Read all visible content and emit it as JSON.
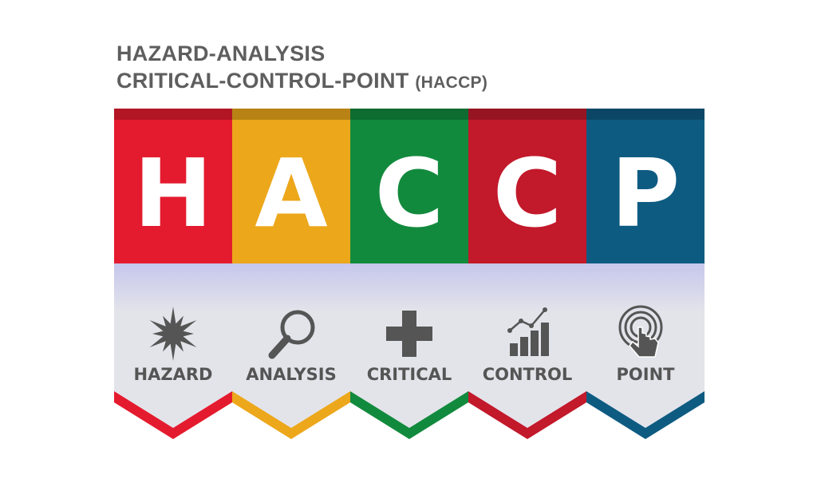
{
  "title": {
    "line1": "HAZARD-ANALYSIS",
    "line2": "CRITICAL-CONTROL-POINT",
    "abbreviation": "(HACCP)"
  },
  "columns": [
    {
      "letter": "H",
      "word": "HAZARD",
      "icon": "explosion-burst-icon",
      "color": "#e41b2e"
    },
    {
      "letter": "A",
      "word": "ANALYSIS",
      "icon": "magnifying-glass-icon",
      "color": "#eca71b"
    },
    {
      "letter": "C",
      "word": "CRITICAL",
      "icon": "medical-cross-icon",
      "color": "#128a3d"
    },
    {
      "letter": "C",
      "word": "CONTROL",
      "icon": "bar-chart-icon",
      "color": "#c2192b"
    },
    {
      "letter": "P",
      "word": "POINT",
      "icon": "touch-pointer-icon",
      "color": "#0e5b82"
    }
  ],
  "colors": {
    "title_text": "#5e5e5e",
    "icon_gray": "#555555",
    "panel_gray": "#e3e4ea",
    "shadow_lavender": "#c6c7ec"
  }
}
